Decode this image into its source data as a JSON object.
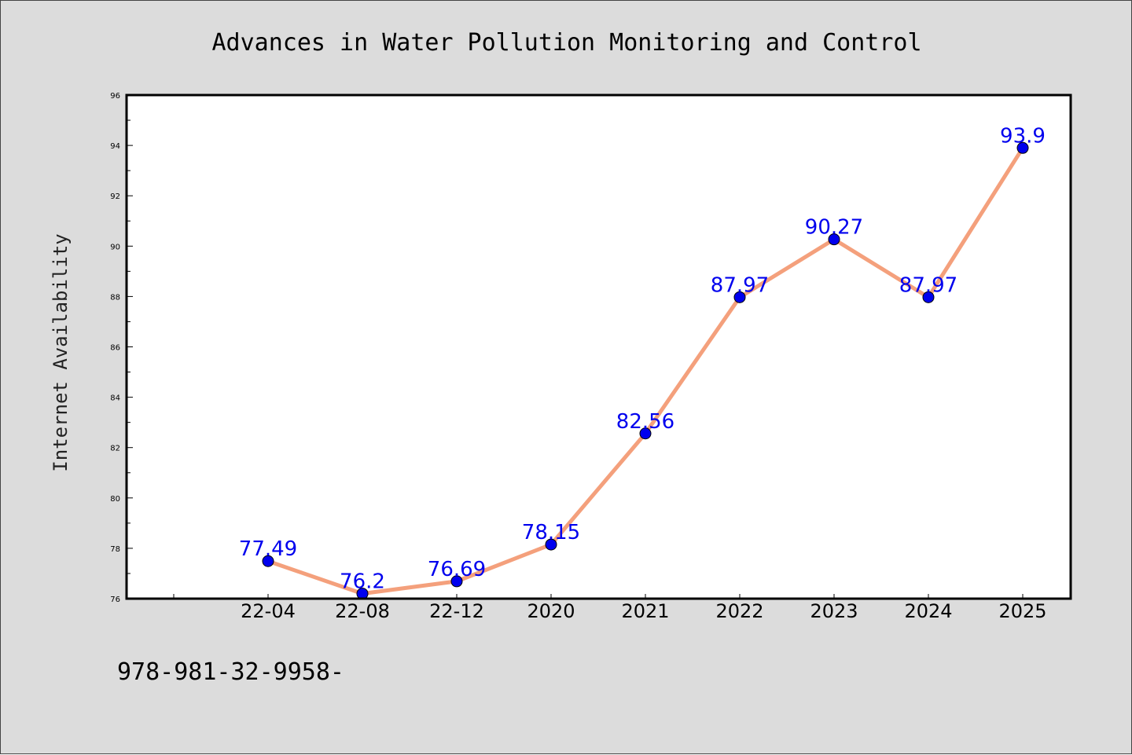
{
  "colors": {
    "background": "#dcdcdc",
    "plot_background": "#ffffff",
    "line": "#f4a07c",
    "marker": "#0000ee",
    "data_label": "#0000ee"
  },
  "footer": {
    "text": "978-981-32-9958-"
  },
  "chart_data": {
    "type": "line",
    "title": "Advances in Water Pollution Monitoring and Control",
    "xlabel": "",
    "ylabel": "Internet Availability",
    "categories": [
      "22-04",
      "22-08",
      "22-12",
      "2020",
      "2021",
      "2022",
      "2023",
      "2024",
      "2025"
    ],
    "series": [
      {
        "values": [
          77.49,
          76.2,
          76.69,
          78.15,
          82.56,
          87.97,
          90.27,
          87.97,
          93.9
        ]
      }
    ],
    "data_labels": [
      "77.49",
      "76.2",
      "76.69",
      "78.15",
      "82.56",
      "87.97",
      "90.27",
      "87.97",
      "93.9"
    ],
    "ylim": [
      76,
      96
    ],
    "yticks": [
      76,
      78,
      80,
      82,
      84,
      86,
      88,
      90,
      92,
      94,
      96
    ],
    "grid": false,
    "legend": "none"
  }
}
